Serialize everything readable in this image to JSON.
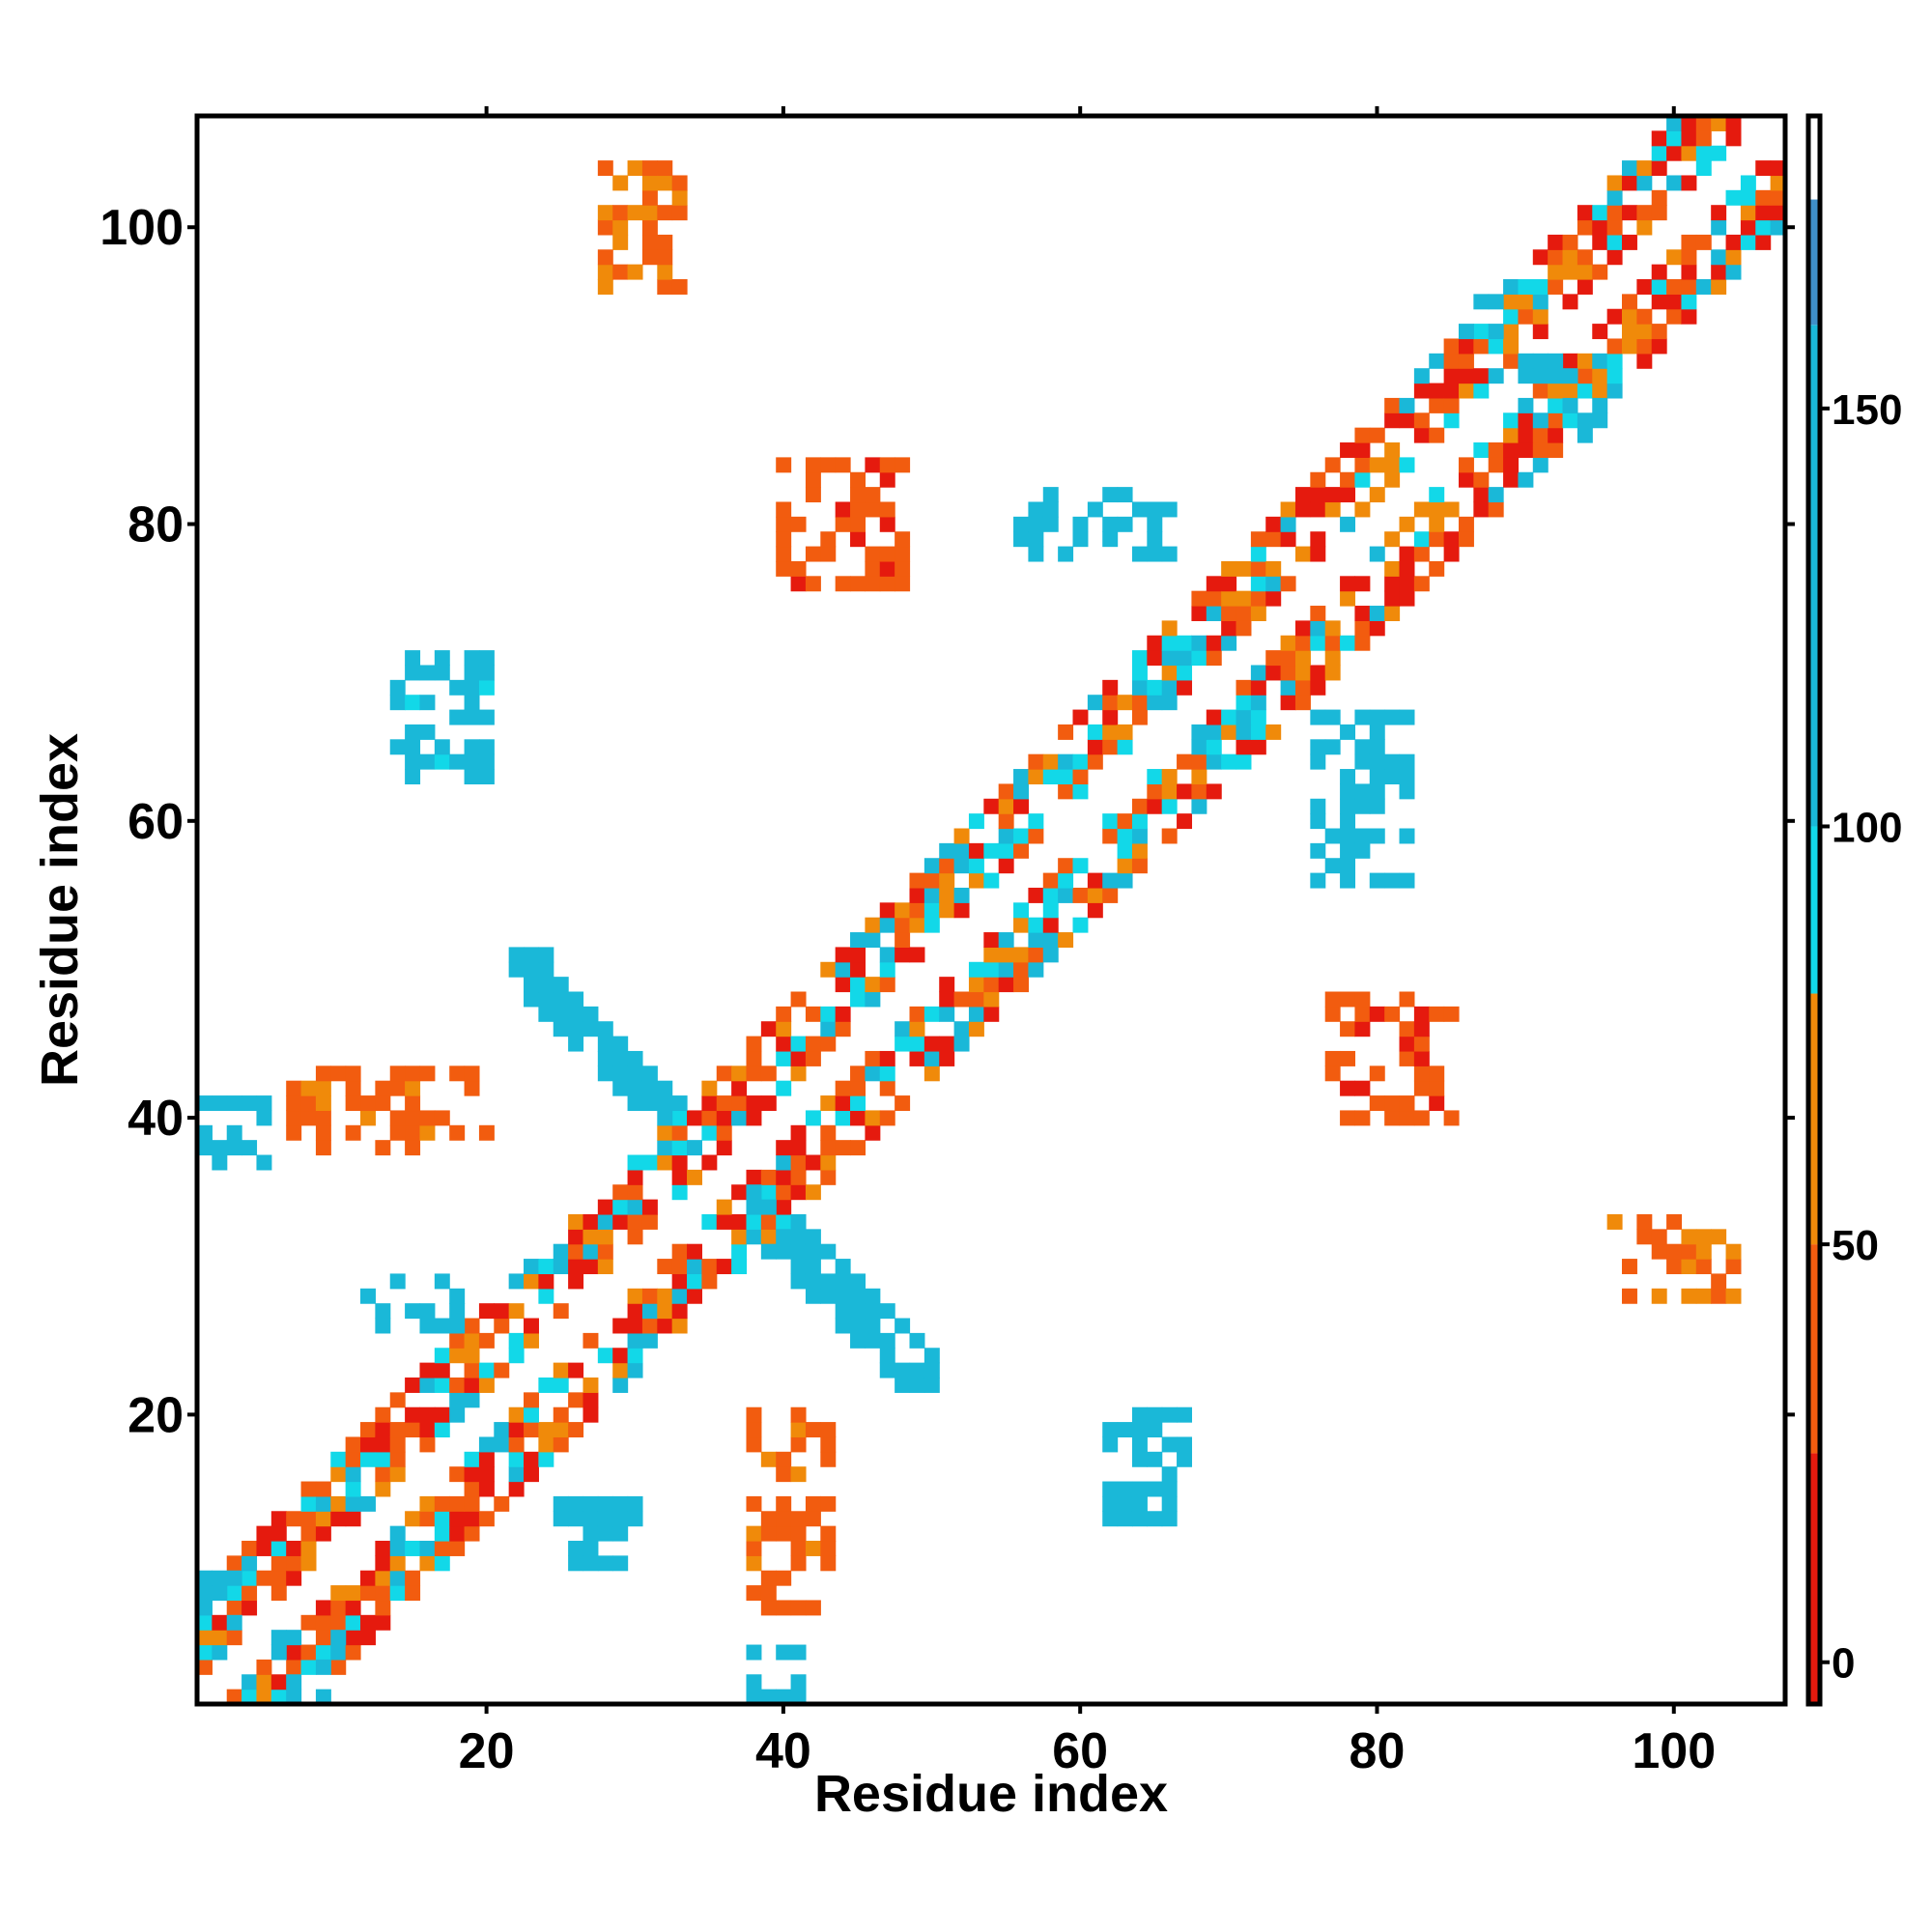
{
  "chart_data": {
    "type": "heatmap",
    "title": "",
    "xlabel": "Residue index",
    "ylabel": "Residue index",
    "xlim": [
      0.5,
      107.5
    ],
    "ylim": [
      0.5,
      107.5
    ],
    "x_ticks": [
      20,
      40,
      60,
      80,
      100
    ],
    "y_ticks": [
      20,
      40,
      60,
      80,
      100
    ],
    "grid": false,
    "legend": "colorbar-right",
    "colorbar": {
      "range": [
        -5,
        185
      ],
      "ticks": [
        0,
        50,
        100,
        150
      ],
      "bands": [
        {
          "from": -5,
          "to": 25,
          "color": "#e51a0e"
        },
        {
          "from": 25,
          "to": 50,
          "color": "#f25c0f"
        },
        {
          "from": 50,
          "to": 80,
          "color": "#f08a0a"
        },
        {
          "from": 80,
          "to": 100,
          "color": "#12d8e8"
        },
        {
          "from": 100,
          "to": 160,
          "color": "#1ab8d8"
        },
        {
          "from": 160,
          "to": 175,
          "color": "#3f8fc8"
        },
        {
          "from": 175,
          "to": 185,
          "color": "#ffffff"
        }
      ]
    },
    "contacts": {
      "near_diagonal": {
        "min_offset": 2,
        "max_offset": 7,
        "range": [
          1,
          107
        ]
      },
      "regions": [
        {
          "x": [
            22,
            34
          ],
          "y": [
            38,
            51
          ],
          "anti": true,
          "value": 145
        },
        {
          "x": [
            37,
            50
          ],
          "y": [
            22,
            35
          ],
          "anti": true,
          "value": 145
        },
        {
          "x": [
            1,
            5
          ],
          "y": [
            37,
            41
          ],
          "value": 120
        },
        {
          "x": [
            6,
            11
          ],
          "y": [
            1,
            5
          ],
          "value": 120
        },
        {
          "x": [
            1,
            4
          ],
          "y": [
            6,
            11
          ],
          "value": 120
        },
        {
          "x": [
            86,
            91
          ],
          "y": [
            90,
            95
          ],
          "value": 130
        },
        {
          "x": [
            90,
            95
          ],
          "y": [
            86,
            91
          ],
          "value": 130
        },
        {
          "x": [
            40,
            48
          ],
          "y": [
            76,
            84
          ],
          "value": 35
        },
        {
          "x": [
            77,
            85
          ],
          "y": [
            40,
            48
          ],
          "value": 35
        },
        {
          "x": [
            38,
            41
          ],
          "y": [
            1,
            4
          ],
          "value": 120
        },
        {
          "x": [
            12,
            18
          ],
          "y": [
            26,
            29
          ],
          "value": 130
        },
        {
          "x": [
            25,
            30
          ],
          "y": [
            10,
            14
          ],
          "value": 130
        },
        {
          "x": [
            14,
            20
          ],
          "y": [
            63,
            71
          ],
          "value": 110
        },
        {
          "x": [
            28,
            33
          ],
          "y": [
            96,
            104
          ],
          "value": 45
        },
        {
          "x": [
            96,
            104
          ],
          "y": [
            28,
            33
          ],
          "value": 45
        },
        {
          "x": [
            62,
            67
          ],
          "y": [
            13,
            20
          ],
          "value": 115
        },
        {
          "x": [
            56,
            66
          ],
          "y": [
            78,
            82
          ],
          "value": 140
        },
        {
          "x": [
            76,
            82
          ],
          "y": [
            56,
            67
          ],
          "value": 140
        },
        {
          "x": [
            38,
            43
          ],
          "y": [
            7,
            20
          ],
          "value": 40
        },
        {
          "x": [
            7,
            20
          ],
          "y": [
            38,
            43
          ],
          "value": 40
        }
      ]
    }
  }
}
